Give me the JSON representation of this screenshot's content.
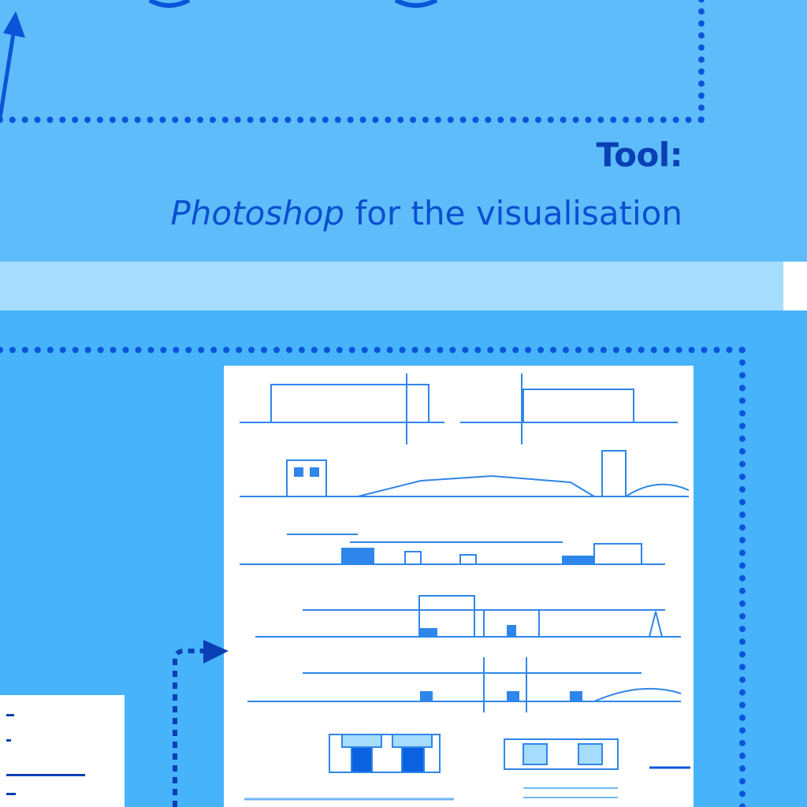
{
  "tool": {
    "label": "Tool:",
    "software": "Photoshop",
    "purpose": " for the visualisation"
  },
  "colors": {
    "panel_light": "#5fbcfa",
    "panel_band": "#a6dcfd",
    "panel_dark": "#47b3fb",
    "accent_blue": "#0a55d8",
    "text_blue": "#0a3fb5"
  },
  "icons": {
    "flow_arrow_up": "arrow-up-icon",
    "flow_arrow_right": "arrow-right-icon"
  }
}
